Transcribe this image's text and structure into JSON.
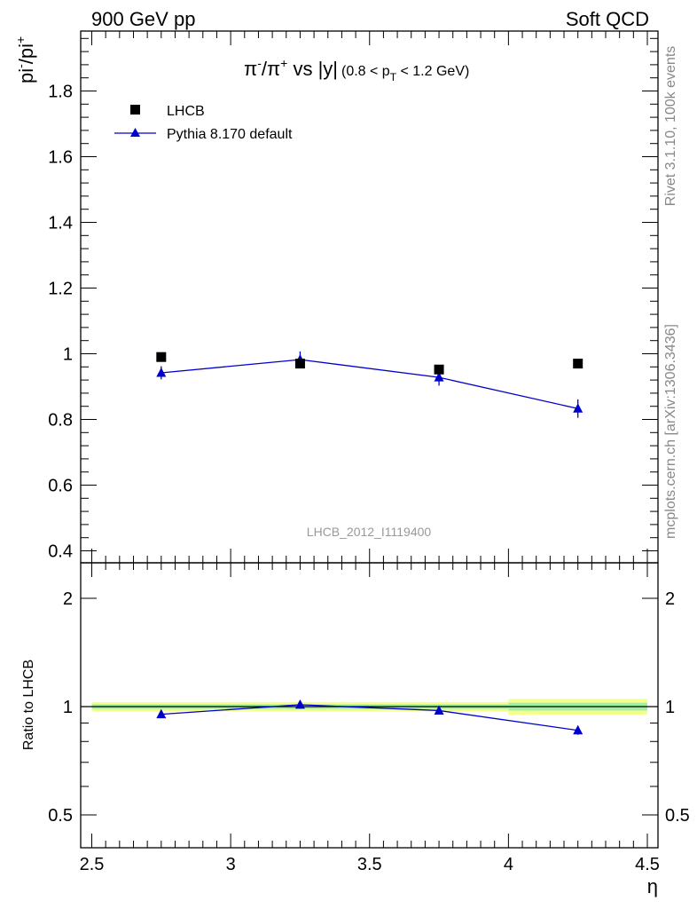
{
  "header": {
    "energy_label": "900 GeV pp",
    "category_label": "Soft QCD",
    "side_label_top": "Rivet 3.1.10,  100k events",
    "side_label_bottom": "mcplots.cern.ch [arXiv:1306.3436]",
    "analysis_id": "LHCB_2012_I1119400"
  },
  "chart_data": [
    {
      "type": "scatter",
      "panel": "main",
      "title": "π⁻/π⁺ vs |y| (0.8 < p_T < 1.2 GeV)",
      "title_parts": {
        "main": "π",
        "sup1": "-",
        "mid": "/π",
        "sup2": "+",
        "vs": " vs |y|",
        "range_a": "(0.8 < p",
        "sub": "T",
        "range_b": " < 1.2 GeV)"
      },
      "ylabel": "pi-/pi+",
      "ylabel_parts": {
        "a": "pi",
        "sup1": "-",
        "b": "/pi",
        "sup2": "+"
      },
      "xlabel": "η",
      "xlim": [
        2.5,
        4.5
      ],
      "ylim": [
        0.38,
        1.99
      ],
      "yticks": [
        0.4,
        0.6,
        0.8,
        1,
        1.2,
        1.4,
        1.6,
        1.8
      ],
      "ytick_labels": [
        "0.4",
        "0.6",
        "0.8",
        "1",
        "1.2",
        "1.4",
        "1.6",
        "1.8"
      ],
      "legend_position": "top-left",
      "series": [
        {
          "name": "LHCB",
          "marker": "square",
          "color": "#000000",
          "line": false,
          "x": [
            2.75,
            3.25,
            3.75,
            4.25
          ],
          "y": [
            0.99,
            0.97,
            0.952,
            0.97
          ],
          "yerr": [
            0.008,
            0.008,
            0.008,
            0.008
          ]
        },
        {
          "name": "Pythia 8.170 default",
          "marker": "triangle",
          "color": "#0000cc",
          "line": true,
          "x": [
            2.75,
            3.25,
            3.75,
            4.25
          ],
          "y": [
            0.942,
            0.982,
            0.928,
            0.833
          ],
          "yerr": [
            0.02,
            0.025,
            0.025,
            0.028
          ]
        }
      ]
    },
    {
      "type": "line",
      "panel": "ratio",
      "ylabel": "Ratio to LHCB",
      "xlabel": "η",
      "xlim": [
        2.5,
        4.5
      ],
      "ylim": [
        0.4,
        2.4
      ],
      "ylog": true,
      "yticks": [
        0.5,
        1,
        2
      ],
      "ytick_labels": [
        "0.5",
        "1",
        "2"
      ],
      "xticks": [
        2.5,
        3,
        3.5,
        4,
        4.5
      ],
      "xtick_labels": [
        "2.5",
        "3",
        "3.5",
        "4",
        "4.5"
      ],
      "reference_line": 1,
      "uncertainty_bands": [
        {
          "xmin": 2.5,
          "xmax": 3.0,
          "inner": [
            0.985,
            1.015
          ],
          "outer": [
            0.97,
            1.03
          ]
        },
        {
          "xmin": 3.0,
          "xmax": 3.5,
          "inner": [
            0.985,
            1.015
          ],
          "outer": [
            0.97,
            1.03
          ]
        },
        {
          "xmin": 3.5,
          "xmax": 4.0,
          "inner": [
            0.985,
            1.015
          ],
          "outer": [
            0.97,
            1.03
          ]
        },
        {
          "xmin": 4.0,
          "xmax": 4.5,
          "inner": [
            0.975,
            1.025
          ],
          "outer": [
            0.95,
            1.05
          ]
        }
      ],
      "band_colors": {
        "inner": "#9ff0a0",
        "outer": "#f4ff8c"
      },
      "series": [
        {
          "name": "Pythia 8.170 default",
          "color": "#0000cc",
          "x": [
            2.75,
            3.25,
            3.75,
            4.25
          ],
          "y": [
            0.952,
            1.012,
            0.975,
            0.859
          ],
          "yerr": [
            0.01,
            0.025,
            0.025,
            0.028
          ]
        }
      ]
    }
  ]
}
